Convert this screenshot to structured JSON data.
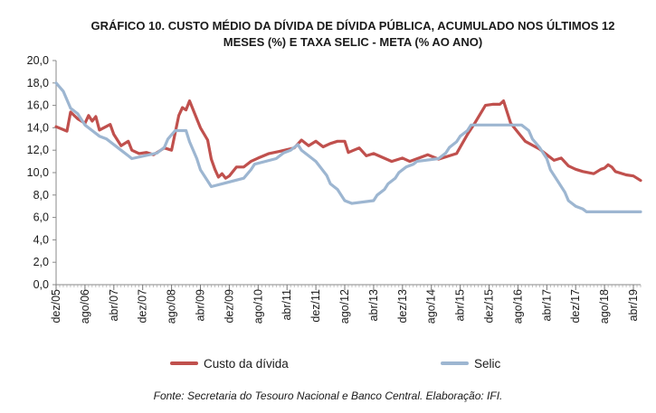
{
  "chart_data": {
    "type": "line",
    "title_line1": "GRÁFICO 10. CUSTO MÉDIO DA DÍVIDA DE DÍVIDA PÚBLICA, ACUMULADO NOS ÚLTIMOS 12",
    "title_line2": "MESES (%) E TAXA SELIC - META (% AO ANO)",
    "xlabel": "",
    "ylabel": "",
    "ylim": [
      0,
      20
    ],
    "yticks": [
      "0,0",
      "2,0",
      "4,0",
      "6,0",
      "8,0",
      "10,0",
      "12,0",
      "14,0",
      "16,0",
      "18,0",
      "20,0"
    ],
    "x_tick_labels": [
      "dez/05",
      "ago/06",
      "abr/07",
      "dez/07",
      "ago/08",
      "abr/09",
      "dez/09",
      "ago/10",
      "abr/11",
      "dez/11",
      "ago/12",
      "abr/13",
      "dez/13",
      "ago/14",
      "abr/15",
      "dez/15",
      "ago/16",
      "abr/17",
      "dez/17",
      "ago/18",
      "abr/19"
    ],
    "x_start": "dez/05",
    "x_end": "jun/19",
    "grid": false,
    "legend_position": "bottom",
    "series": [
      {
        "name": "Custo da dívida",
        "color": "#c0504d",
        "anchors": [
          [
            "dez/05",
            14.1
          ],
          [
            "mar/06",
            13.7
          ],
          [
            "abr/06",
            15.4
          ],
          [
            "jun/06",
            14.8
          ],
          [
            "ago/06",
            14.4
          ],
          [
            "set/06",
            15.1
          ],
          [
            "out/06",
            14.6
          ],
          [
            "nov/06",
            15.0
          ],
          [
            "dez/06",
            13.8
          ],
          [
            "mar/07",
            14.3
          ],
          [
            "abr/07",
            13.4
          ],
          [
            "jun/07",
            12.4
          ],
          [
            "ago/07",
            12.8
          ],
          [
            "set/07",
            12.0
          ],
          [
            "nov/07",
            11.7
          ],
          [
            "jan/08",
            11.8
          ],
          [
            "mar/08",
            11.6
          ],
          [
            "jun/08",
            12.2
          ],
          [
            "ago/08",
            12.0
          ],
          [
            "out/08",
            15.1
          ],
          [
            "nov/08",
            15.8
          ],
          [
            "dez/08",
            15.6
          ],
          [
            "jan/09",
            16.4
          ],
          [
            "mar/09",
            14.8
          ],
          [
            "abr/09",
            14.0
          ],
          [
            "jun/09",
            12.9
          ],
          [
            "jul/09",
            11.2
          ],
          [
            "ago/09",
            10.3
          ],
          [
            "set/09",
            9.6
          ],
          [
            "out/09",
            9.9
          ],
          [
            "nov/09",
            9.5
          ],
          [
            "dez/09",
            9.7
          ],
          [
            "fev/10",
            10.5
          ],
          [
            "abr/10",
            10.5
          ],
          [
            "jun/10",
            11.0
          ],
          [
            "ago/10",
            11.3
          ],
          [
            "nov/10",
            11.7
          ],
          [
            "fev/11",
            11.9
          ],
          [
            "jun/11",
            12.2
          ],
          [
            "ago/11",
            12.9
          ],
          [
            "out/11",
            12.4
          ],
          [
            "dez/11",
            12.8
          ],
          [
            "fev/12",
            12.3
          ],
          [
            "abr/12",
            12.6
          ],
          [
            "jun/12",
            12.8
          ],
          [
            "ago/12",
            12.8
          ],
          [
            "set/12",
            11.8
          ],
          [
            "dez/12",
            12.2
          ],
          [
            "fev/13",
            11.5
          ],
          [
            "abr/13",
            11.7
          ],
          [
            "set/13",
            11.0
          ],
          [
            "dez/13",
            11.3
          ],
          [
            "fev/14",
            11.0
          ],
          [
            "jul/14",
            11.6
          ],
          [
            "out/14",
            11.2
          ],
          [
            "dez/14",
            11.4
          ],
          [
            "mar/15",
            11.7
          ],
          [
            "jun/15",
            13.4
          ],
          [
            "ago/15",
            14.4
          ],
          [
            "nov/15",
            16.0
          ],
          [
            "jan/16",
            16.1
          ],
          [
            "mar/16",
            16.1
          ],
          [
            "abr/16",
            16.4
          ],
          [
            "jun/16",
            14.4
          ],
          [
            "ago/16",
            13.6
          ],
          [
            "out/16",
            12.8
          ],
          [
            "fev/17",
            12.1
          ],
          [
            "abr/17",
            11.6
          ],
          [
            "jun/17",
            11.1
          ],
          [
            "ago/17",
            11.3
          ],
          [
            "out/17",
            10.6
          ],
          [
            "dez/17",
            10.3
          ],
          [
            "fev/18",
            10.1
          ],
          [
            "mai/18",
            9.9
          ],
          [
            "jul/18",
            10.3
          ],
          [
            "ago/18",
            10.4
          ],
          [
            "set/18",
            10.7
          ],
          [
            "out/18",
            10.5
          ],
          [
            "nov/18",
            10.1
          ],
          [
            "fev/19",
            9.8
          ],
          [
            "abr/19",
            9.7
          ],
          [
            "jun/19",
            9.3
          ]
        ]
      },
      {
        "name": "Selic",
        "color": "#9db6d1",
        "anchors": [
          [
            "dez/05",
            18.0
          ],
          [
            "fev/06",
            17.25
          ],
          [
            "abr/06",
            15.75
          ],
          [
            "jun/06",
            15.25
          ],
          [
            "ago/06",
            14.25
          ],
          [
            "out/06",
            13.75
          ],
          [
            "dez/06",
            13.25
          ],
          [
            "fev/07",
            13.0
          ],
          [
            "abr/07",
            12.5
          ],
          [
            "jun/07",
            12.0
          ],
          [
            "ago/07",
            11.5
          ],
          [
            "set/07",
            11.25
          ],
          [
            "abr/08",
            11.75
          ],
          [
            "jun/08",
            12.25
          ],
          [
            "jul/08",
            13.0
          ],
          [
            "set/08",
            13.75
          ],
          [
            "dez/08",
            13.75
          ],
          [
            "jan/09",
            12.75
          ],
          [
            "mar/09",
            11.25
          ],
          [
            "abr/09",
            10.25
          ],
          [
            "jun/09",
            9.25
          ],
          [
            "jul/09",
            8.75
          ],
          [
            "abr/10",
            9.5
          ],
          [
            "jun/10",
            10.25
          ],
          [
            "jul/10",
            10.75
          ],
          [
            "jan/11",
            11.25
          ],
          [
            "mar/11",
            11.75
          ],
          [
            "mai/11",
            12.0
          ],
          [
            "jul/11",
            12.5
          ],
          [
            "ago/11",
            12.0
          ],
          [
            "out/11",
            11.5
          ],
          [
            "dez/11",
            11.0
          ],
          [
            "mar/12",
            9.75
          ],
          [
            "abr/12",
            9.0
          ],
          [
            "jun/12",
            8.5
          ],
          [
            "ago/12",
            7.5
          ],
          [
            "out/12",
            7.25
          ],
          [
            "abr/13",
            7.5
          ],
          [
            "mai/13",
            8.0
          ],
          [
            "jul/13",
            8.5
          ],
          [
            "ago/13",
            9.0
          ],
          [
            "out/13",
            9.5
          ],
          [
            "nov/13",
            10.0
          ],
          [
            "jan/14",
            10.5
          ],
          [
            "mar/14",
            10.75
          ],
          [
            "abr/14",
            11.0
          ],
          [
            "out/14",
            11.25
          ],
          [
            "dez/14",
            11.75
          ],
          [
            "jan/15",
            12.25
          ],
          [
            "mar/15",
            12.75
          ],
          [
            "abr/15",
            13.25
          ],
          [
            "jun/15",
            13.75
          ],
          [
            "jul/15",
            14.25
          ],
          [
            "set/16",
            14.25
          ],
          [
            "out/16",
            14.0
          ],
          [
            "nov/16",
            13.75
          ],
          [
            "dez/16",
            13.0
          ],
          [
            "fev/17",
            12.25
          ],
          [
            "abr/17",
            11.25
          ],
          [
            "mai/17",
            10.25
          ],
          [
            "jul/17",
            9.25
          ],
          [
            "set/17",
            8.25
          ],
          [
            "out/17",
            7.5
          ],
          [
            "dez/17",
            7.0
          ],
          [
            "fev/18",
            6.75
          ],
          [
            "mar/18",
            6.5
          ],
          [
            "jun/19",
            6.5
          ]
        ]
      }
    ],
    "source": "Fonte: Secretaria do Tesouro Nacional e Banco Central. Elaboração: IFI."
  }
}
